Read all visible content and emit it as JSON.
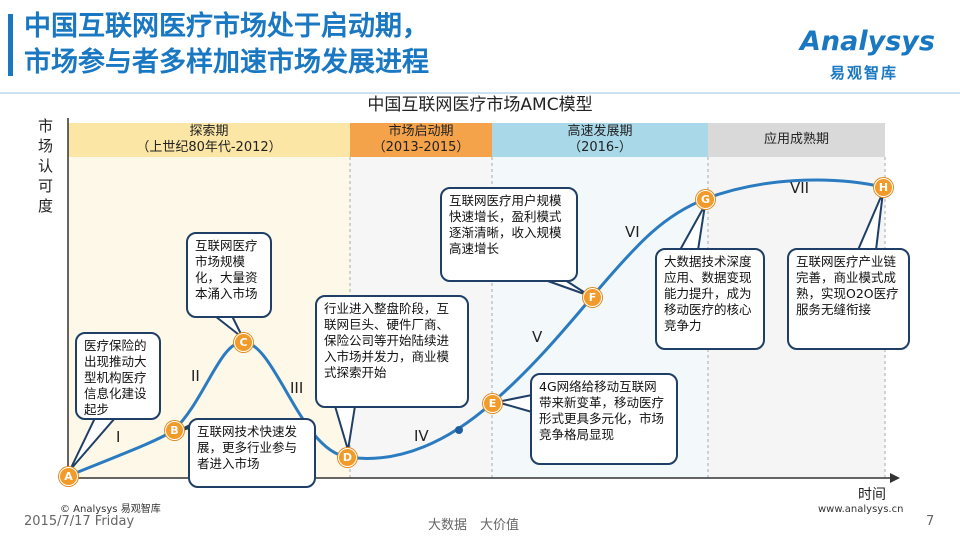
{
  "header": {
    "title_lines": [
      "中国互联网医疗市场处于启动期，",
      "市场参与者多样加速市场发展进程"
    ],
    "logo": {
      "name": "Analysys",
      "subtitle": "易观智库"
    }
  },
  "diagram": {
    "title": "中国互联网医疗市场AMC模型",
    "y_axis_label": "市场认可度",
    "x_axis_label": "时间",
    "phases": [
      {
        "name": "探索期",
        "period": "（上世纪80年代-2012）"
      },
      {
        "name": "市场启动期",
        "period": "（2013-2015）"
      },
      {
        "name": "高速发展期",
        "period": "（2016-）"
      },
      {
        "name": "应用成熟期"
      }
    ],
    "stages": [
      "I",
      "II",
      "III",
      "IV",
      "V",
      "VI",
      "VII"
    ],
    "points": [
      "A",
      "B",
      "C",
      "D",
      "E",
      "F",
      "G",
      "H"
    ],
    "callouts": [
      "医疗保险的出现推动大型机构医疗信息化建设起步",
      "互联网医疗市场规模化，大量资本涌入市场",
      "互联网技术快速发展，更多行业参与者进入市场",
      "行业进入整盘阶段，互联网巨头、硬件厂商、保险公司等开始陆续进入市场并发力，商业模式探索开始",
      "4G网络给移动互联网带来新变革，移动医疗形式更具多元化，市场竞争格局显现",
      "互联网医疗用户规模快速增长，盈利模式逐渐清晰，收入规模高速增长",
      "大数据技术深度应用、数据变现能力提升，成为移动医疗的核心竞争力",
      "互联网医疗产业链完善，商业模式成熟，实现O2O医疗服务无缝衔接"
    ]
  },
  "footer": {
    "copyright": "© Analysys 易观智库",
    "date": "2015/7/17 Friday",
    "slogan": "大数据　大价值",
    "website": "www.analysys.cn",
    "page": "7"
  }
}
